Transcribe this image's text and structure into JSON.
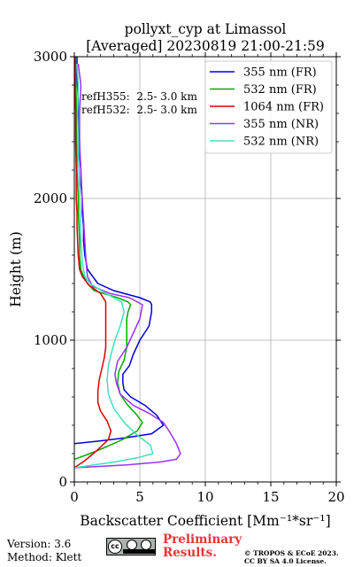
{
  "chart_data": {
    "type": "line",
    "title": "pollyxt_cyp at Limassol",
    "subtitle": "[Averaged] 20230819 21:00-21:59",
    "xlabel": "Backscatter Coefficient [Mm⁻¹*sr⁻¹]",
    "ylabel": "Height (m)",
    "xlim": [
      0,
      20
    ],
    "ylim": [
      0,
      3000
    ],
    "xticks": [
      "0",
      "5",
      "10",
      "15",
      "20"
    ],
    "yticks": [
      "0",
      "1000",
      "2000",
      "3000"
    ],
    "xtick_values": [
      0,
      5,
      10,
      15,
      20
    ],
    "ytick_values": [
      0,
      1000,
      2000,
      3000
    ],
    "grid": true,
    "legend_position": "top-right",
    "annotations": [
      "refH355:  2.5- 3.0 km",
      "refH532:  2.5- 3.0 km"
    ],
    "series": [
      {
        "name": "355 nm (FR)",
        "color": "#0000dd",
        "x": [
          0,
          2,
          3.8,
          5.9,
          6.8,
          6.3,
          5.4,
          4.3,
          3.8,
          3.7,
          3.7,
          4.2,
          4.5,
          5.0,
          5.7,
          5.9,
          5.9,
          5.8,
          5.0,
          3.0,
          1.8,
          1.4,
          1.0,
          0.8,
          0.7,
          0.7,
          0.6,
          0.6,
          0.5,
          0.5,
          0.4,
          0.4,
          0.3,
          0.3,
          0.3,
          0.2,
          0.2
        ],
        "y": [
          270,
          290,
          310,
          340,
          400,
          470,
          540,
          600,
          650,
          700,
          760,
          820,
          900,
          1000,
          1100,
          1200,
          1250,
          1270,
          1300,
          1350,
          1400,
          1450,
          1500,
          1600,
          1700,
          1800,
          1900,
          2000,
          2100,
          2200,
          2300,
          2400,
          2500,
          2600,
          2700,
          2850,
          3000
        ]
      },
      {
        "name": "532 nm (FR)",
        "color": "#00aa00",
        "x": [
          0,
          1.2,
          2.5,
          3.7,
          4.8,
          5.2,
          4.7,
          4.0,
          3.5,
          3.3,
          3.4,
          3.8,
          4.0,
          4.0,
          4.0,
          4.1,
          4.3,
          4.1,
          3.3,
          1.5,
          1.0,
          0.7,
          0.5,
          0.4,
          0.4,
          0.35,
          0.3,
          0.3,
          0.25,
          0.2,
          0.2,
          0.15,
          0.15,
          0.1,
          0.1
        ],
        "y": [
          160,
          200,
          250,
          300,
          360,
          420,
          480,
          550,
          620,
          700,
          780,
          860,
          950,
          1050,
          1150,
          1200,
          1250,
          1270,
          1300,
          1350,
          1400,
          1450,
          1500,
          1600,
          1700,
          1800,
          1900,
          2000,
          2100,
          2200,
          2300,
          2500,
          2700,
          2850,
          3000
        ]
      },
      {
        "name": "1064 nm (FR)",
        "color": "#dd0000",
        "x": [
          0,
          0.8,
          1.7,
          2.6,
          2.8,
          2.5,
          2.0,
          1.8,
          1.8,
          1.9,
          2.1,
          2.3,
          2.4,
          2.4,
          2.4,
          2.4,
          2.0,
          1.1,
          0.6,
          0.4,
          0.3,
          0.25,
          0.2,
          0.2,
          0.15,
          0.15,
          0.1,
          0.1,
          0.05,
          0.05,
          0.05
        ],
        "y": [
          100,
          150,
          220,
          300,
          360,
          430,
          500,
          560,
          640,
          720,
          800,
          880,
          950,
          1050,
          1150,
          1270,
          1330,
          1390,
          1450,
          1500,
          1600,
          1700,
          1800,
          1900,
          2000,
          2200,
          2400,
          2600,
          2750,
          2850,
          3000
        ]
      },
      {
        "name": "355 nm (NR)",
        "color": "#9b30ff",
        "x": [
          0,
          4.0,
          6.5,
          7.8,
          8.1,
          7.8,
          7.3,
          6.8,
          5.8,
          4.5,
          3.5,
          3.2,
          3.1,
          3.3,
          4.0,
          4.5,
          5.0,
          5.2,
          4.2,
          2.7,
          1.4,
          1.0,
          0.9,
          0.8,
          0.7,
          0.6,
          0.5,
          0.4,
          0.4,
          0.5,
          0.3
        ],
        "y": [
          100,
          120,
          140,
          160,
          200,
          270,
          350,
          420,
          480,
          540,
          620,
          700,
          760,
          850,
          950,
          1050,
          1150,
          1250,
          1300,
          1330,
          1380,
          1450,
          1550,
          1700,
          1850,
          2000,
          2200,
          2400,
          2600,
          2800,
          2950
        ]
      },
      {
        "name": "532 nm (NR)",
        "color": "#40e0c0",
        "x": [
          0,
          1.5,
          3.0,
          4.8,
          6.0,
          5.8,
          4.8,
          3.8,
          3.0,
          2.6,
          2.5,
          2.6,
          2.8,
          3.1,
          3.5,
          3.8,
          3.6,
          2.4,
          1.2,
          0.8,
          0.6,
          0.5,
          0.45,
          0.4,
          0.35,
          0.3,
          0.25,
          0.3,
          0.2
        ],
        "y": [
          100,
          120,
          140,
          170,
          200,
          260,
          330,
          420,
          520,
          620,
          720,
          820,
          900,
          1000,
          1100,
          1200,
          1270,
          1330,
          1400,
          1450,
          1550,
          1700,
          1850,
          2000,
          2200,
          2400,
          2600,
          2800,
          2950
        ]
      }
    ]
  },
  "footer": {
    "version": "Version: 3.6",
    "method": "Method: Klett",
    "cc_label": "cc",
    "preliminary_line1": "Preliminary",
    "preliminary_line2": "Results.",
    "copyright_line1": "© TROPOS & ECoE 2023.",
    "copyright_line2": "CC BY SA 4.0 License."
  }
}
